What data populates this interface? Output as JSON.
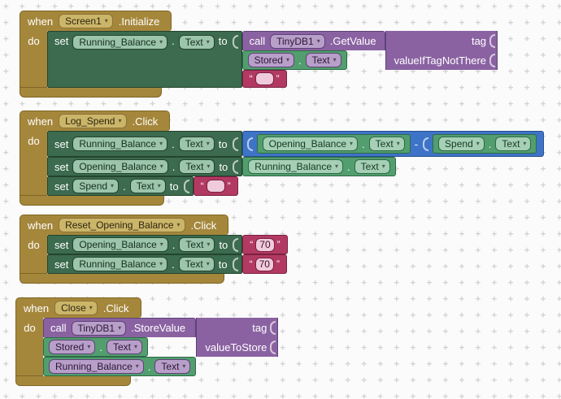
{
  "grid_mark": "+",
  "sep": {
    "dot": "."
  },
  "colors": {
    "event_gold": "#A5873C",
    "setter_green": "#3C6B4F",
    "getter_green": "#529E6E",
    "call_purple": "#8A62A2",
    "math_blue": "#3E74C8",
    "text_crimson": "#B23A62",
    "canvas": "#FBFBFB",
    "grid": "#D2D2D2"
  },
  "blocks": {
    "screen_init": {
      "when": "when",
      "do": "do",
      "component": "Screen1",
      "event": ".Initialize",
      "setter": {
        "set": "set",
        "component": "Running_Balance",
        "property": "Text",
        "to": "to"
      },
      "call": {
        "call": "call",
        "component": "TinyDB1",
        "method": ".GetValue",
        "tag_label": "tag",
        "value_if_label": "valueIfTagNotThere"
      },
      "tag_value": {
        "component": "Stored",
        "property": "Text"
      },
      "default_value": {
        "open": "“",
        "text": "",
        "close": "”"
      }
    },
    "log_spend": {
      "when": "when",
      "do": "do",
      "component": "Log_Spend",
      "event": ".Click",
      "set_running": {
        "set": "set",
        "component": "Running_Balance",
        "property": "Text",
        "to": "to"
      },
      "math": {
        "operator": "-",
        "left": {
          "component": "Opening_Balance",
          "property": "Text"
        },
        "right": {
          "component": "Spend",
          "property": "Text"
        }
      },
      "set_opening": {
        "set": "set",
        "component": "Opening_Balance",
        "property": "Text",
        "to": "to"
      },
      "opening_value": {
        "component": "Running_Balance",
        "property": "Text"
      },
      "set_spend": {
        "set": "set",
        "component": "Spend",
        "property": "Text",
        "to": "to"
      },
      "spend_value": {
        "open": "“",
        "text": "",
        "close": "”"
      }
    },
    "reset_opening": {
      "when": "when",
      "do": "do",
      "component": "Reset_Opening_Balance",
      "event": ".Click",
      "set_opening": {
        "set": "set",
        "component": "Opening_Balance",
        "property": "Text",
        "to": "to"
      },
      "opening_value": {
        "open": "“",
        "text": "70",
        "close": "”"
      },
      "set_running": {
        "set": "set",
        "component": "Running_Balance",
        "property": "Text",
        "to": "to"
      },
      "running_value": {
        "open": "“",
        "text": "70",
        "close": "”"
      }
    },
    "close": {
      "when": "when",
      "do": "do",
      "component": "Close",
      "event": ".Click",
      "call": {
        "call": "call",
        "component": "TinyDB1",
        "method": ".StoreValue",
        "tag_label": "tag",
        "value_label": "valueToStore"
      },
      "tag_value": {
        "component": "Stored",
        "property": "Text"
      },
      "store_value": {
        "component": "Running_Balance",
        "property": "Text"
      }
    }
  }
}
